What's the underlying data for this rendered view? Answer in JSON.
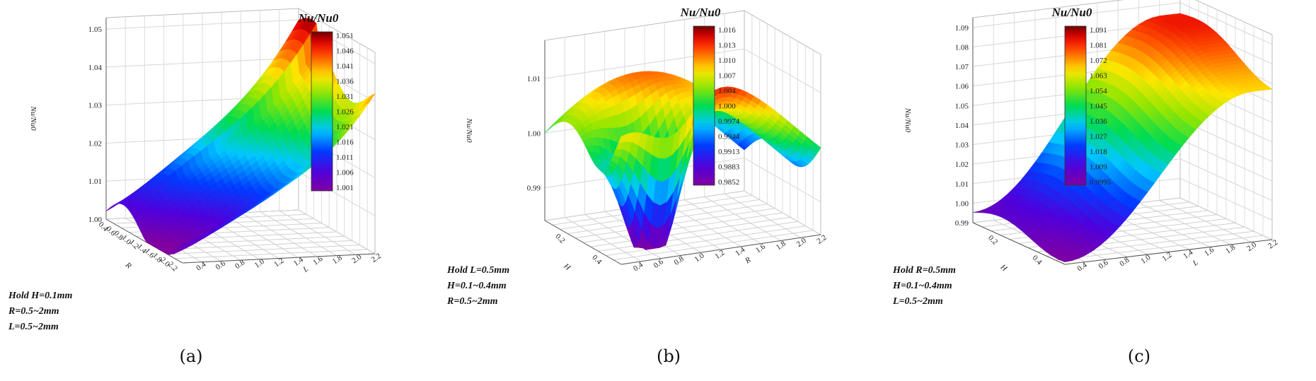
{
  "chart_data": [
    {
      "type": "surface3d",
      "panel_label": "(a)",
      "colorbar_title": "Nu/Nu0",
      "colorbar_ticks": [
        "1.051",
        "1.046",
        "1.041",
        "1.036",
        "1.031",
        "1.026",
        "1.021",
        "1.016",
        "1.011",
        "1.006",
        "1.001"
      ],
      "zlabel": "Nu/Nu0",
      "z_ticks": [
        "1.00",
        "1.01",
        "1.02",
        "1.03",
        "1.04",
        "1.05"
      ],
      "zlim": [
        1.0,
        1.053
      ],
      "x_axis_label": "R",
      "x_ticks": [
        "0.4",
        "0.6",
        "0.8",
        "1.0",
        "1.2",
        "1.4",
        "1.6",
        "1.8",
        "2.0",
        "2.2"
      ],
      "y_axis_label": "L",
      "y_ticks": [
        "0.4",
        "0.6",
        "0.8",
        "1.0",
        "1.2",
        "1.4",
        "1.6",
        "1.8",
        "2.0",
        "2.2"
      ],
      "hold_lines": [
        "Hold H=0.1mm",
        "R=0.5~2mm",
        "L=0.5~2mm"
      ]
    },
    {
      "type": "surface3d",
      "panel_label": "(b)",
      "colorbar_title": "Nu/Nu0",
      "colorbar_ticks": [
        "1.016",
        "1.013",
        "1.010",
        "1.007",
        "1.004",
        "1.000",
        "0.9974",
        "0.9944",
        "0.9913",
        "0.9883",
        "0.9852"
      ],
      "zlabel": "Nu/Nu0",
      "z_ticks": [
        "0.99",
        "1.00",
        "1.01"
      ],
      "zlim": [
        0.984,
        1.017
      ],
      "x_axis_label": "H",
      "x_ticks": [
        "0.2",
        "0.4"
      ],
      "y_axis_label": "R",
      "y_ticks": [
        "0.4",
        "0.6",
        "0.8",
        "1.0",
        "1.2",
        "1.4",
        "1.6",
        "1.8",
        "2.0",
        "2.2"
      ],
      "hold_lines": [
        "Hold L=0.5mm",
        "H=0.1~0.4mm",
        "R=0.5~2mm"
      ]
    },
    {
      "type": "surface3d",
      "panel_label": "(c)",
      "colorbar_title": "Nu/Nu0",
      "colorbar_ticks": [
        "1.091",
        "1.081",
        "1.072",
        "1.063",
        "1.054",
        "1.045",
        "1.036",
        "1.027",
        "1.018",
        "1.009",
        "0.9995"
      ],
      "zlabel": "Nu/Nu0",
      "z_ticks": [
        "0.99",
        "1.00",
        "1.01",
        "1.02",
        "1.03",
        "1.04",
        "1.05",
        "1.06",
        "1.07",
        "1.08",
        "1.09"
      ],
      "zlim": [
        0.99,
        1.095
      ],
      "x_axis_label": "H",
      "x_ticks": [
        "0.2",
        "0.4"
      ],
      "y_axis_label": "L",
      "y_ticks": [
        "0.4",
        "0.6",
        "0.8",
        "1.0",
        "1.2",
        "1.4",
        "1.6",
        "1.8",
        "2.0",
        "2.2"
      ],
      "hold_lines": [
        "Hold R=0.5mm",
        "H=0.1~0.4mm",
        "L=0.5~2mm"
      ]
    }
  ]
}
